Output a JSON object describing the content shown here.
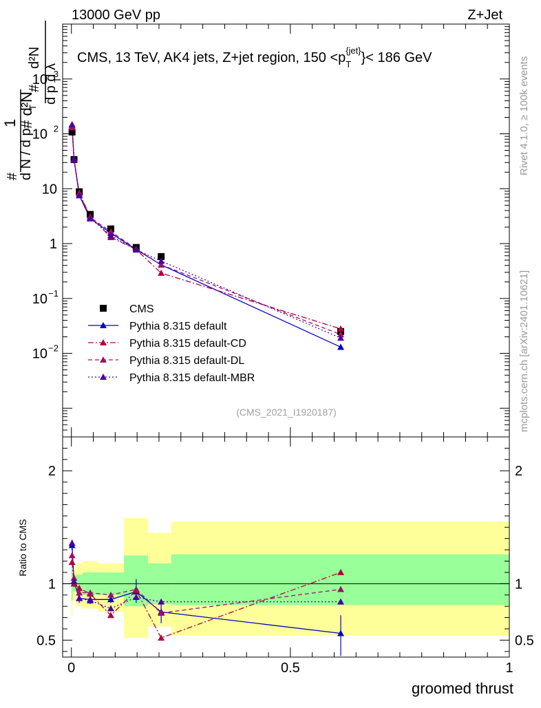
{
  "header": {
    "left": "13000 GeV pp",
    "right": "Z+Jet"
  },
  "side_labels": {
    "rivet": "Rivet 4.1.0, ≥ 100k events",
    "mcplots": "mcplots.cern.ch [arXiv:2401.10621]"
  },
  "chart_data": {
    "type": "scatter",
    "title": "CMS, 13 TeV, AK4 jets, Z+jet region, 150 <p_T^{jet}< 186 GeV",
    "analysis_id": "(CMS_2021_I1920187)",
    "xlabel": "groomed thrust",
    "ylabel": "1/dN/dpT dN2/dpT dλ",
    "ratio_ylabel": "Ratio to CMS",
    "xlim": [
      -0.02,
      1.0
    ],
    "ylim_main": [
      0.0003,
      10000
    ],
    "ylim_ratio": [
      0.35,
      2.3
    ],
    "yscale_main": "log",
    "x_ticks": [
      "0",
      "0.5",
      "1"
    ],
    "y_ticks_main": [
      "10^-2",
      "10^-1",
      "1",
      "10",
      "10^2",
      "10^3"
    ],
    "y_ticks_ratio": [
      "0.5",
      "1",
      "2"
    ],
    "x": [
      0.0015,
      0.006,
      0.018,
      0.043,
      0.09,
      0.148,
      0.205,
      0.615
    ],
    "bin_edges": [
      0,
      0.003,
      0.01,
      0.025,
      0.06,
      0.12,
      0.175,
      0.228,
      1.0
    ],
    "band_inner": [
      [
        0.85,
        1.15
      ],
      [
        0.93,
        1.08
      ],
      [
        0.92,
        1.08
      ],
      [
        0.9,
        1.1
      ],
      [
        0.9,
        1.1
      ],
      [
        0.8,
        1.25
      ],
      [
        0.82,
        1.18
      ],
      [
        0.81,
        1.26
      ]
    ],
    "band_outer": [
      [
        0.72,
        1.3
      ],
      [
        0.85,
        1.12
      ],
      [
        0.8,
        1.18
      ],
      [
        0.78,
        1.2
      ],
      [
        0.75,
        1.18
      ],
      [
        0.52,
        1.58
      ],
      [
        0.62,
        1.45
      ],
      [
        0.54,
        1.55
      ]
    ],
    "series": [
      {
        "name": "CMS",
        "color": "#000000",
        "marker": "square",
        "values": [
          108,
          34,
          8.8,
          3.4,
          1.85,
          0.85,
          0.58,
          0.025
        ],
        "ratio": [
          1,
          1,
          1,
          1,
          1,
          1,
          1,
          1
        ]
      },
      {
        "name": "Pythia 8.315 default",
        "color": "#0000cc",
        "marker": "triangle",
        "style": "solid",
        "values": [
          145,
          34,
          7.6,
          2.85,
          1.55,
          0.78,
          0.41,
          0.013
        ],
        "ratio": [
          1.34,
          1.02,
          0.87,
          0.86,
          0.86,
          0.93,
          0.75,
          0.56
        ]
      },
      {
        "name": "Pythia 8.315 default-CD",
        "color": "#b3003c",
        "marker": "triangle",
        "style": "dashdot",
        "values": [
          130,
          34,
          8.4,
          3.1,
          1.3,
          0.78,
          0.29,
          0.028
        ],
        "ratio": [
          1.19,
          1.0,
          0.96,
          0.91,
          0.72,
          0.94,
          0.52,
          1.1
        ]
      },
      {
        "name": "Pythia 8.315 default-DL",
        "color": "#a0106a",
        "marker": "triangle",
        "style": "dashed",
        "values": [
          135,
          35,
          8.1,
          3.0,
          1.65,
          0.8,
          0.41,
          0.022
        ],
        "ratio": [
          1.25,
          1.05,
          0.92,
          0.92,
          0.9,
          0.95,
          0.74,
          0.95
        ]
      },
      {
        "name": "Pythia 8.315 default-MBR",
        "color": "#4a00a8",
        "marker": "triangle",
        "style": "dotted",
        "values": [
          148,
          35,
          7.5,
          2.9,
          1.4,
          0.77,
          0.48,
          0.019
        ],
        "ratio": [
          1.36,
          1.02,
          0.87,
          0.85,
          0.78,
          0.88,
          0.84,
          0.84
        ]
      }
    ],
    "error_bars": {
      "series": "Pythia 8.315 default",
      "ratio_low": [
        1.3,
        0.97,
        0.83,
        0.82,
        0.83,
        0.83,
        0.65,
        0.36
      ],
      "ratio_high": [
        1.39,
        1.07,
        0.92,
        0.9,
        0.9,
        1.04,
        0.85,
        0.72
      ]
    }
  }
}
